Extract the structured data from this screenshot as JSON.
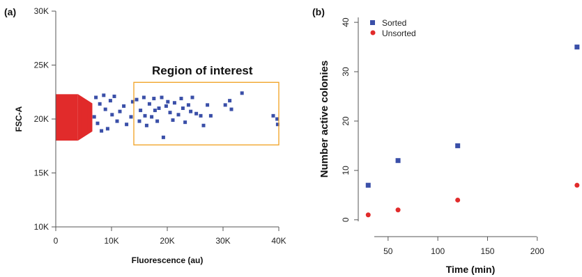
{
  "colors": {
    "sorted": "#3a4fa8",
    "unsorted": "#e12b2b",
    "region_box": "#f0a020",
    "axis": "#555555"
  },
  "chart_data": [
    {
      "panel_label": "(a)",
      "type": "scatter",
      "xlabel": "Fluorescence (au)",
      "ylabel": "FSC-A",
      "xlim": [
        0,
        40000
      ],
      "ylim": [
        10000,
        30000
      ],
      "x_ticks": [
        0,
        10000,
        20000,
        30000,
        40000
      ],
      "x_tick_labels": [
        "0",
        "10K",
        "20K",
        "30K",
        "40K"
      ],
      "y_ticks": [
        10000,
        15000,
        20000,
        25000,
        30000
      ],
      "y_tick_labels": [
        "10K",
        "15K",
        "20K",
        "25K",
        "30K"
      ],
      "annotation": "Region of interest",
      "region": {
        "x": [
          14000,
          40000
        ],
        "y": [
          17600,
          23400
        ]
      },
      "dense_cluster": {
        "x": [
          0,
          6500
        ],
        "y": [
          18000,
          22300
        ]
      },
      "series": [
        {
          "points": [
            [
              14500,
              21800
            ],
            [
              15200,
              20800
            ],
            [
              15800,
              22000
            ],
            [
              16300,
              19400
            ],
            [
              16800,
              21400
            ],
            [
              17200,
              20200
            ],
            [
              17600,
              21900
            ],
            [
              18200,
              19800
            ],
            [
              18500,
              21000
            ],
            [
              19000,
              22000
            ],
            [
              19300,
              18300
            ],
            [
              19800,
              21200
            ],
            [
              20500,
              20600
            ],
            [
              21000,
              19900
            ],
            [
              21300,
              21500
            ],
            [
              22000,
              20400
            ],
            [
              22500,
              21900
            ],
            [
              23200,
              19700
            ],
            [
              23800,
              21300
            ],
            [
              24500,
              22000
            ],
            [
              25200,
              20500
            ],
            [
              26000,
              20300
            ],
            [
              26500,
              19400
            ],
            [
              27200,
              21300
            ],
            [
              27800,
              20300
            ],
            [
              30400,
              21300
            ],
            [
              31200,
              21700
            ],
            [
              31500,
              20900
            ],
            [
              33400,
              22400
            ],
            [
              39000,
              20300
            ],
            [
              39700,
              20000
            ],
            [
              39800,
              19500
            ],
            [
              15000,
              19800
            ],
            [
              17800,
              20800
            ],
            [
              20100,
              21600
            ],
            [
              22800,
              21000
            ],
            [
              24200,
              20700
            ],
            [
              16000,
              20300
            ],
            [
              13800,
              21600
            ],
            [
              13500,
              20200
            ],
            [
              12700,
              19500
            ],
            [
              12200,
              21200
            ],
            [
              11500,
              20700
            ],
            [
              11000,
              19800
            ],
            [
              10500,
              22100
            ],
            [
              10100,
              20400
            ],
            [
              9800,
              21700
            ],
            [
              9300,
              19100
            ],
            [
              8900,
              20900
            ],
            [
              8600,
              22200
            ],
            [
              8200,
              18900
            ],
            [
              7900,
              21400
            ],
            [
              7500,
              19600
            ],
            [
              7200,
              22000
            ],
            [
              6900,
              20200
            ]
          ]
        }
      ]
    },
    {
      "panel_label": "(b)",
      "type": "scatter",
      "xlabel": "Time (min)",
      "ylabel": "Number active colonies",
      "xlim": [
        20,
        245
      ],
      "ylim": [
        -2,
        41
      ],
      "x_ticks": [
        50,
        100,
        150,
        200
      ],
      "y_ticks": [
        0,
        10,
        20,
        30,
        40
      ],
      "legend_position": "top-left",
      "series": [
        {
          "name": "Sorted",
          "marker": "square",
          "x": [
            30,
            60,
            120,
            240
          ],
          "y": [
            7,
            12,
            15,
            35
          ]
        },
        {
          "name": "Unsorted",
          "marker": "circle",
          "x": [
            30,
            60,
            120,
            240
          ],
          "y": [
            1,
            2,
            4,
            7
          ]
        }
      ]
    }
  ]
}
